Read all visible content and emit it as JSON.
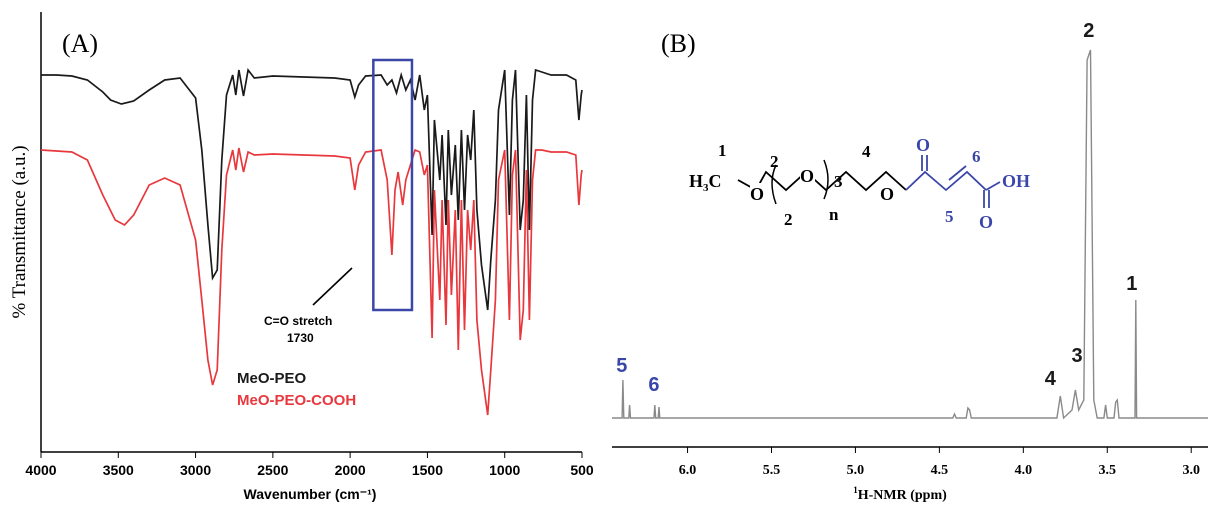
{
  "chart_data": [
    {
      "type": "line",
      "panel_label": "(A)",
      "xlabel": "Wavenumber (cm⁻¹)",
      "ylabel": "% Transmittance (a.u.)",
      "xlim": [
        4000,
        500
      ],
      "x_reversed": true,
      "x_ticks": [
        "4000",
        "3500",
        "3000",
        "2500",
        "2000",
        "1500",
        "1000",
        "500"
      ],
      "annotation": {
        "text_line1": "C=O stretch",
        "text_line2": "1730",
        "x": 1730,
        "highlight_range": [
          1850,
          1600
        ]
      },
      "legend": [
        "MeO-PEO",
        "MeO-PEO-COOH"
      ],
      "colors": {
        "MeO-PEO": "#1a1a1a",
        "MeO-PEO-COOH": "#e8383d",
        "highlight": "#3b47a8"
      },
      "series": [
        {
          "name": "MeO-PEO",
          "points": [
            [
              4000,
              75
            ],
            [
              3900,
              75
            ],
            [
              3800,
              76
            ],
            [
              3700,
              80
            ],
            [
              3600,
              92
            ],
            [
              3550,
              100
            ],
            [
              3480,
              104
            ],
            [
              3400,
              101
            ],
            [
              3300,
              90
            ],
            [
              3200,
              80
            ],
            [
              3100,
              78
            ],
            [
              3000,
              98
            ],
            [
              2960,
              150
            ],
            [
              2920,
              225
            ],
            [
              2890,
              278
            ],
            [
              2860,
              270
            ],
            [
              2830,
              160
            ],
            [
              2800,
              95
            ],
            [
              2760,
              75
            ],
            [
              2740,
              95
            ],
            [
              2720,
              70
            ],
            [
              2690,
              96
            ],
            [
              2660,
              70
            ],
            [
              2620,
              78
            ],
            [
              2500,
              76
            ],
            [
              2300,
              77
            ],
            [
              2100,
              78
            ],
            [
              2000,
              80
            ],
            [
              1970,
              97
            ],
            [
              1945,
              85
            ],
            [
              1900,
              76
            ],
            [
              1800,
              75
            ],
            [
              1760,
              85
            ],
            [
              1730,
              80
            ],
            [
              1700,
              93
            ],
            [
              1670,
              75
            ],
            [
              1640,
              90
            ],
            [
              1610,
              80
            ],
            [
              1580,
              100
            ],
            [
              1550,
              75
            ],
            [
              1520,
              110
            ],
            [
              1500,
              95
            ],
            [
              1470,
              235
            ],
            [
              1455,
              120
            ],
            [
              1420,
              180
            ],
            [
              1405,
              135
            ],
            [
              1380,
              225
            ],
            [
              1365,
              130
            ],
            [
              1345,
              195
            ],
            [
              1320,
              145
            ],
            [
              1300,
              220
            ],
            [
              1280,
              130
            ],
            [
              1260,
              210
            ],
            [
              1240,
              135
            ],
            [
              1220,
              160
            ],
            [
              1200,
              110
            ],
            [
              1180,
              210
            ],
            [
              1150,
              265
            ],
            [
              1110,
              310
            ],
            [
              1090,
              260
            ],
            [
              1060,
              200
            ],
            [
              1040,
              110
            ],
            [
              1000,
              70
            ],
            [
              970,
              215
            ],
            [
              950,
              100
            ],
            [
              930,
              70
            ],
            [
              900,
              230
            ],
            [
              880,
              200
            ],
            [
              860,
              95
            ],
            [
              840,
              230
            ],
            [
              820,
              100
            ],
            [
              800,
              70
            ],
            [
              760,
              72
            ],
            [
              700,
              75
            ],
            [
              600,
              75
            ],
            [
              540,
              80
            ],
            [
              520,
              120
            ],
            [
              505,
              95
            ],
            [
              500,
              90
            ]
          ]
        },
        {
          "name": "MeO-PEO-COOH",
          "points": [
            [
              4000,
              150
            ],
            [
              3900,
              151
            ],
            [
              3800,
              152
            ],
            [
              3700,
              160
            ],
            [
              3600,
              195
            ],
            [
              3520,
              220
            ],
            [
              3460,
              225
            ],
            [
              3400,
              215
            ],
            [
              3300,
              185
            ],
            [
              3200,
              178
            ],
            [
              3100,
              185
            ],
            [
              3000,
              240
            ],
            [
              2960,
              300
            ],
            [
              2920,
              360
            ],
            [
              2890,
              385
            ],
            [
              2860,
              370
            ],
            [
              2830,
              250
            ],
            [
              2800,
              175
            ],
            [
              2760,
              150
            ],
            [
              2740,
              170
            ],
            [
              2720,
              148
            ],
            [
              2690,
              172
            ],
            [
              2660,
              152
            ],
            [
              2620,
              155
            ],
            [
              2500,
              154
            ],
            [
              2300,
              155
            ],
            [
              2100,
              156
            ],
            [
              2000,
              158
            ],
            [
              1970,
              190
            ],
            [
              1945,
              165
            ],
            [
              1900,
              152
            ],
            [
              1800,
              150
            ],
            [
              1760,
              180
            ],
            [
              1730,
              255
            ],
            [
              1710,
              190
            ],
            [
              1690,
              172
            ],
            [
              1660,
              205
            ],
            [
              1640,
              180
            ],
            [
              1610,
              165
            ],
            [
              1580,
              150
            ],
            [
              1550,
              152
            ],
            [
              1520,
              175
            ],
            [
              1500,
              165
            ],
            [
              1470,
              338
            ],
            [
              1455,
              190
            ],
            [
              1420,
              300
            ],
            [
              1405,
              200
            ],
            [
              1380,
              325
            ],
            [
              1365,
              200
            ],
            [
              1345,
              295
            ],
            [
              1320,
              210
            ],
            [
              1300,
              350
            ],
            [
              1280,
              200
            ],
            [
              1260,
              330
            ],
            [
              1240,
              210
            ],
            [
              1220,
              250
            ],
            [
              1200,
              200
            ],
            [
              1180,
              320
            ],
            [
              1150,
              370
            ],
            [
              1110,
              415
            ],
            [
              1090,
              370
            ],
            [
              1060,
              300
            ],
            [
              1040,
              180
            ],
            [
              1000,
              150
            ],
            [
              970,
              320
            ],
            [
              950,
              175
            ],
            [
              930,
              150
            ],
            [
              900,
              340
            ],
            [
              880,
              310
            ],
            [
              860,
              170
            ],
            [
              840,
              320
            ],
            [
              820,
              180
            ],
            [
              800,
              150
            ],
            [
              760,
              150
            ],
            [
              700,
              152
            ],
            [
              600,
              152
            ],
            [
              540,
              155
            ],
            [
              520,
              205
            ],
            [
              505,
              175
            ],
            [
              500,
              170
            ]
          ]
        }
      ]
    },
    {
      "type": "line",
      "panel_label": "(B)",
      "xlabel_sup": "1",
      "xlabel": "H-NMR (ppm)",
      "xlim": [
        6.45,
        2.9
      ],
      "x_reversed": true,
      "x_ticks": [
        "6.0",
        "5.5",
        "5.0",
        "4.5",
        "4.0",
        "3.5",
        "3.0"
      ],
      "peak_labels": [
        {
          "text": "5",
          "x": 6.38,
          "color": "#3b47a8"
        },
        {
          "text": "6",
          "x": 6.2,
          "color": "#3b47a8"
        },
        {
          "text": "4",
          "x": 3.78,
          "color": "#1a1a1a"
        },
        {
          "text": "3",
          "x": 3.68,
          "color": "#1a1a1a"
        },
        {
          "text": "2",
          "x": 3.61,
          "color": "#1a1a1a"
        },
        {
          "text": "1",
          "x": 3.33,
          "color": "#1a1a1a"
        }
      ],
      "structure": {
        "methyl": "H",
        "methyl_sub": "3",
        "methyl_c": "C",
        "oxygen": "O",
        "repeat": "n",
        "locants": [
          "1",
          "2",
          "2",
          "3",
          "4",
          "5",
          "6"
        ],
        "acid": "OH"
      },
      "colors": {
        "spectrum": "#8a8a8a",
        "blue": "#3b47a8"
      },
      "series": [
        {
          "name": "",
          "points": [
            [
              6.45,
              418
            ],
            [
              6.39,
              418
            ],
            [
              6.385,
              380
            ],
            [
              6.38,
              418
            ],
            [
              6.35,
              418
            ],
            [
              6.345,
              405
            ],
            [
              6.34,
              418
            ],
            [
              6.2,
              418
            ],
            [
              6.195,
              405
            ],
            [
              6.19,
              418
            ],
            [
              6.175,
              418
            ],
            [
              6.17,
              407
            ],
            [
              6.165,
              418
            ],
            [
              4.42,
              418
            ],
            [
              4.41,
              414
            ],
            [
              4.4,
              418
            ],
            [
              4.34,
              418
            ],
            [
              4.33,
              408
            ],
            [
              4.32,
              410
            ],
            [
              4.31,
              418
            ],
            [
              3.8,
              418
            ],
            [
              3.78,
              396
            ],
            [
              3.76,
              418
            ],
            [
              3.71,
              410
            ],
            [
              3.69,
              390
            ],
            [
              3.67,
              410
            ],
            [
              3.64,
              400
            ],
            [
              3.62,
              60
            ],
            [
              3.6,
              50
            ],
            [
              3.58,
              400
            ],
            [
              3.56,
              418
            ],
            [
              3.52,
              418
            ],
            [
              3.51,
              405
            ],
            [
              3.5,
              418
            ],
            [
              3.46,
              418
            ],
            [
              3.45,
              402
            ],
            [
              3.44,
              400
            ],
            [
              3.43,
              418
            ],
            [
              3.335,
              418
            ],
            [
              3.33,
              300
            ],
            [
              3.325,
              418
            ],
            [
              2.9,
              418
            ]
          ]
        }
      ]
    }
  ]
}
